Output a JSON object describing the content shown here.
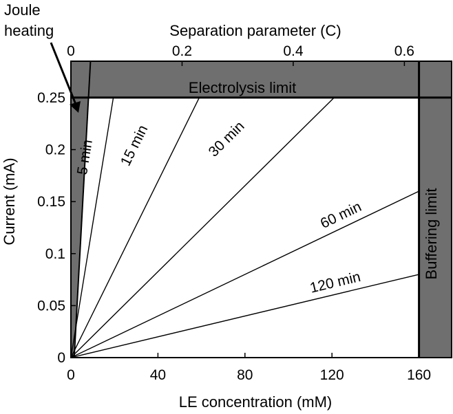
{
  "chart_data": {
    "type": "line",
    "title": "",
    "xlabel": "LE concentration (mM)",
    "ylabel": "Current (mA)",
    "top_xlabel": "Separation parameter (C)",
    "xlim": [
      0,
      175
    ],
    "ylim": [
      0,
      0.285
    ],
    "top_xlim": [
      0,
      0.685
    ],
    "x_ticks": [
      {
        "value": 0,
        "label": "0"
      },
      {
        "value": 40,
        "label": "40"
      },
      {
        "value": 80,
        "label": "80"
      },
      {
        "value": 120,
        "label": "120"
      },
      {
        "value": 160,
        "label": "160"
      }
    ],
    "y_ticks": [
      {
        "value": 0,
        "label": "0"
      },
      {
        "value": 0.05,
        "label": "0.05"
      },
      {
        "value": 0.1,
        "label": "0.1"
      },
      {
        "value": 0.15,
        "label": "0.15"
      },
      {
        "value": 0.2,
        "label": "0.2"
      },
      {
        "value": 0.25,
        "label": "0.25"
      }
    ],
    "top_ticks": [
      {
        "value": 0,
        "label": "0"
      },
      {
        "value": 0.2,
        "label": "0.2"
      },
      {
        "value": 0.4,
        "label": "0.4"
      },
      {
        "value": 0.6,
        "label": "0.6"
      }
    ],
    "grid": false,
    "colors": {
      "region_fill": "#6f6f6f",
      "line": "#000000"
    },
    "regions": [
      {
        "name": "Electrolysis limit",
        "x": [
          0,
          175
        ],
        "y": [
          0.25,
          0.285
        ]
      },
      {
        "name": "Buffering limit",
        "x": [
          160,
          175
        ],
        "y": [
          0,
          0.285
        ]
      },
      {
        "name": "Joule heating",
        "x_at_bottom": 1.5,
        "x_at_top": 9
      }
    ],
    "series": [
      {
        "name": "5 min",
        "x": [
          0,
          19.5
        ],
        "y": [
          0,
          0.25
        ]
      },
      {
        "name": "15 min",
        "x": [
          0,
          59
        ],
        "y": [
          0,
          0.25
        ]
      },
      {
        "name": "30 min",
        "x": [
          0,
          121
        ],
        "y": [
          0,
          0.25
        ]
      },
      {
        "name": "60 min",
        "x": [
          0,
          160
        ],
        "y": [
          0,
          0.16
        ]
      },
      {
        "name": "120 min",
        "x": [
          0,
          160
        ],
        "y": [
          0,
          0.08
        ]
      }
    ],
    "annotations": [
      {
        "text": "Joule heating",
        "points_to": {
          "x": 3,
          "y": 0.25
        }
      }
    ]
  }
}
